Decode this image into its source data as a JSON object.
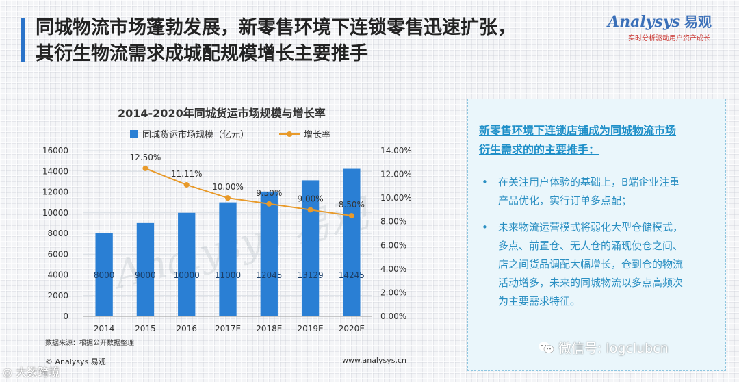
{
  "header": {
    "title_line1": "同城物流市场蓬勃发展，新零售环境下连锁零售迅速扩张，",
    "title_line2": "其衍生物流需求成城配规模增长主要推手"
  },
  "logo": {
    "brand": "Analysys",
    "brand_cn": "易观",
    "slogan": "实时分析驱动用户资产成长"
  },
  "chart_data": {
    "type": "bar+line",
    "title": "2014-2020年同城货运市场规模与增长率",
    "categories": [
      "2014",
      "2015",
      "2016",
      "2017E",
      "2018E",
      "2019E",
      "2020E"
    ],
    "series": [
      {
        "name": "同城货运市场规模（亿元）",
        "type": "bar",
        "axis": "left",
        "values": [
          8000,
          9000,
          10000,
          11000,
          12045,
          13129,
          14245
        ],
        "labels": [
          "8000",
          "9000",
          "10000",
          "11000",
          "12045",
          "13129",
          "14245"
        ]
      },
      {
        "name": "增长率",
        "type": "line",
        "axis": "right",
        "values": [
          null,
          12.5,
          11.11,
          10.0,
          9.5,
          9.0,
          8.5
        ],
        "labels": [
          "",
          "12.50%",
          "11.11%",
          "10.00%",
          "9.50%",
          "9.00%",
          "8.50%"
        ]
      }
    ],
    "left_axis": {
      "ylim": [
        0,
        16000
      ],
      "ticks": [
        "0",
        "2000",
        "4000",
        "6000",
        "8000",
        "10000",
        "12000",
        "14000",
        "16000"
      ]
    },
    "right_axis": {
      "ylim": [
        0,
        14
      ],
      "ticks": [
        "0.00%",
        "2.00%",
        "4.00%",
        "6.00%",
        "8.00%",
        "10.00%",
        "12.00%",
        "14.00%"
      ]
    },
    "watermark": "Analysys 易观",
    "source": "数据来源：根据公开数据整理",
    "footer_left": "© Analysys 易观",
    "footer_right": "www.analysys.cn",
    "colors": {
      "bar": "#2a7fd4",
      "line": "#e89a2a",
      "grid": "#d8dde3"
    }
  },
  "side_panel": {
    "heading": "新零售环境下连锁店铺成为同城物流市场衍生需求的的主要推手：",
    "bullet_char": "•",
    "bullets": [
      "在关注用户体验的基础上，B端企业注重产品优化，实行订单多点配；",
      "未来物流运营模式将弱化大型仓储模式，多点、前置仓、无人仓的涌现使仓之间、店之间货品调配大幅增长，仓到仓的物流活动增多，未来的同城物流以多点高频次为主要需求特征。"
    ]
  },
  "overlay": {
    "wechat_text": "微信号: logclubcn",
    "bottom_left_text": "大数跨境"
  }
}
